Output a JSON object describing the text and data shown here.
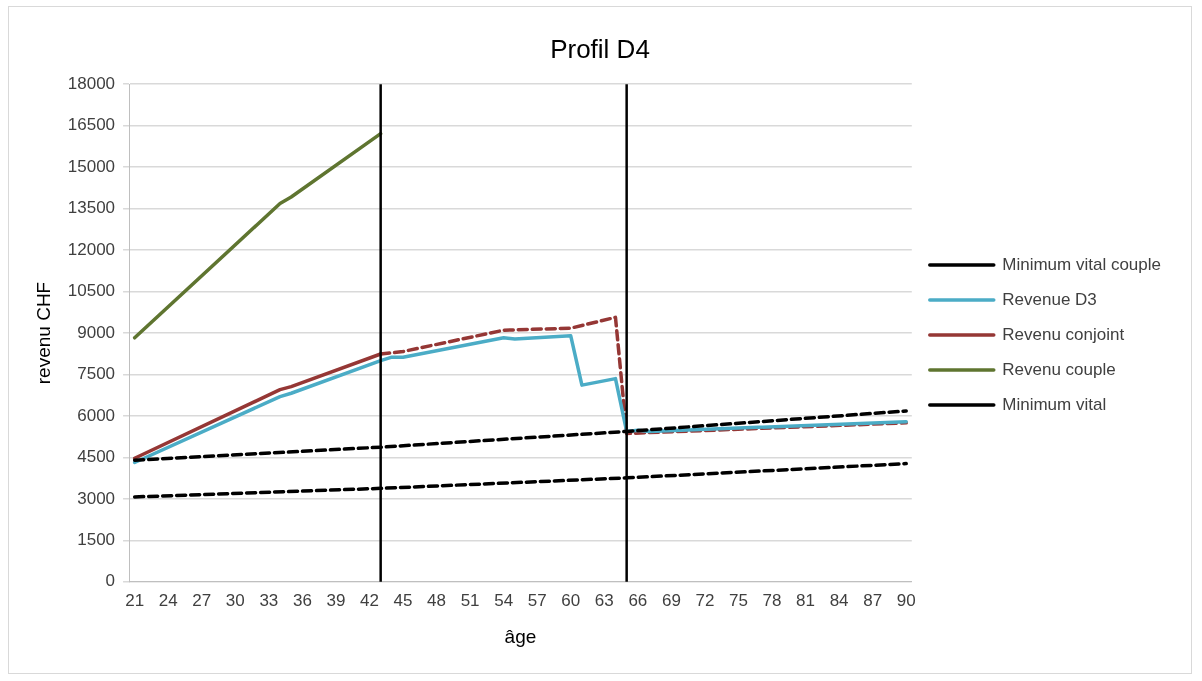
{
  "chart_data": {
    "type": "line",
    "title": "Profil D4",
    "xlabel": "âge",
    "ylabel": "revenu CHF",
    "xlim": [
      20.5,
      90.5
    ],
    "xticks": [
      21,
      24,
      27,
      30,
      33,
      36,
      39,
      42,
      45,
      48,
      51,
      54,
      57,
      60,
      63,
      66,
      69,
      72,
      75,
      78,
      81,
      84,
      87,
      90
    ],
    "ylim": [
      0,
      18000
    ],
    "yticks": [
      0,
      1500,
      3000,
      4500,
      6000,
      7500,
      9000,
      10500,
      12000,
      13500,
      15000,
      16500,
      18000
    ],
    "grid": "y",
    "legend": "right",
    "marker": "none",
    "series": [
      {
        "name": "Minimum vital couple",
        "color": "#000000",
        "line_style": "dashed",
        "x": [
          21,
          43,
          65,
          90
        ],
        "values": [
          4400,
          4870,
          5440,
          6180
        ]
      },
      {
        "name": "Revenue D3",
        "color": "#4bacc6",
        "line_style": "solid",
        "x": [
          21,
          34,
          35,
          43,
          44,
          45,
          54,
          55,
          60,
          61,
          64,
          65,
          66,
          67,
          90
        ],
        "values": [
          4315,
          6700,
          6820,
          8000,
          8125,
          8125,
          8825,
          8780,
          8900,
          7115,
          7350,
          5440,
          5480,
          5440,
          5790
        ]
      },
      {
        "name": "Revenu conjoint",
        "color": "#953735",
        "line_style": "solid",
        "x": [
          21,
          34,
          35,
          43
        ],
        "values": [
          4470,
          6950,
          7060,
          8240
        ]
      },
      {
        "name": "Revenu couple",
        "color": "#5f7530",
        "line_style": "solid",
        "x": [
          21,
          34,
          35,
          43
        ],
        "values": [
          8825,
          13685,
          13920,
          16210
        ]
      },
      {
        "name": "Minimum vital",
        "color": "#000000",
        "line_style": "dashed",
        "x": [
          21,
          43,
          65,
          90
        ],
        "values": [
          3070,
          3380,
          3760,
          4275
        ]
      },
      {
        "color": "#953735",
        "line_style": "dashed",
        "x": [
          43,
          45,
          54,
          60,
          64,
          65,
          90
        ],
        "values": [
          8240,
          8330,
          9100,
          9175,
          9565,
          5365,
          5750
        ]
      }
    ],
    "ref_lines": [
      {
        "axis": "x",
        "value": 43,
        "color": "#000000"
      },
      {
        "axis": "x",
        "value": 65,
        "color": "#000000"
      }
    ]
  }
}
